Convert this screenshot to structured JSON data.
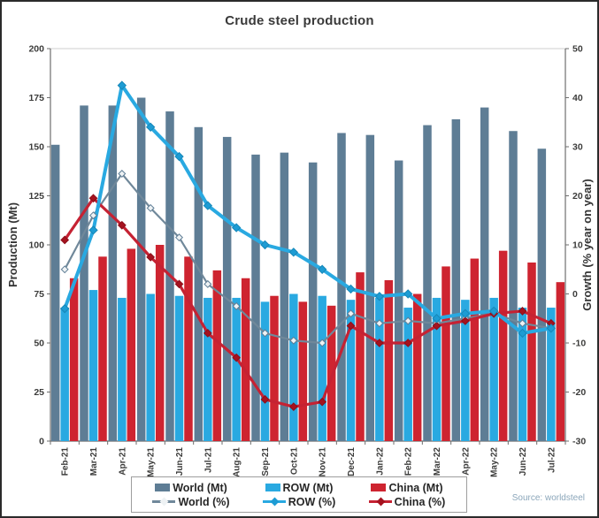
{
  "source_note": "Source: worldsteel",
  "chart_data": {
    "type": "bar+line",
    "title": "Crude steel production",
    "legend_position": "bottom",
    "grid": false,
    "categories": [
      "Feb-21",
      "Mar-21",
      "Apr-21",
      "May-21",
      "Jun-21",
      "Jul-21",
      "Aug-21",
      "Sep-21",
      "Oct-21",
      "Nov-21",
      "Dec-21",
      "Jan-22",
      "Feb-22",
      "Mar-22",
      "Apr-22",
      "May-22",
      "Jun-22",
      "Jul-22"
    ],
    "left_axis": {
      "label": "Production (Mt)",
      "min": 0,
      "max": 200,
      "ticks": [
        0,
        25,
        50,
        75,
        100,
        125,
        150,
        175,
        200
      ]
    },
    "right_axis": {
      "label": "Growth (% year on year)",
      "min": -30,
      "max": 50,
      "ticks": [
        -30,
        -20,
        -10,
        0,
        10,
        20,
        30,
        40,
        50
      ]
    },
    "bar_series": [
      {
        "key": "world-mt",
        "name": "World (Mt)",
        "axis": "left",
        "color": "#5e7d95",
        "values": [
          151,
          171,
          171,
          175,
          168,
          160,
          155,
          146,
          147,
          142,
          157,
          156,
          143,
          161,
          164,
          170,
          158,
          149
        ]
      },
      {
        "key": "row-mt",
        "name": "ROW (Mt)",
        "axis": "left",
        "color": "#29a9e1",
        "values": [
          68,
          77,
          73,
          75,
          74,
          73,
          73,
          71,
          75,
          74,
          72,
          73,
          68,
          73,
          72,
          73,
          68,
          68
        ]
      },
      {
        "key": "china-mt",
        "name": "China (Mt)",
        "axis": "left",
        "color": "#ce2430",
        "values": [
          83,
          94,
          98,
          100,
          94,
          87,
          83,
          74,
          71,
          69,
          86,
          82,
          75,
          89,
          93,
          97,
          91,
          81
        ]
      }
    ],
    "line_series": [
      {
        "key": "world-pct",
        "name": "World (%)",
        "axis": "right",
        "color": "#70889a",
        "marker_fill": "#eef2f4",
        "marker_stroke": "#5e7d95",
        "width": 2.2,
        "marker_size": 3.8,
        "values": [
          5,
          16,
          24.5,
          17.5,
          11.5,
          2,
          -2.5,
          -8,
          -9.5,
          -10,
          -4,
          -6,
          -5.5,
          -6,
          -5,
          -4,
          -6,
          -7
        ]
      },
      {
        "key": "row-pct",
        "name": "ROW (%)",
        "axis": "right",
        "color": "#29a9e1",
        "marker_fill": "#1d9cd4",
        "marker_stroke": "#1787b8",
        "width": 4,
        "marker_size": 4.5,
        "values": [
          -3,
          13,
          42.5,
          34,
          28,
          18,
          13.5,
          10,
          8.5,
          5,
          1,
          -0.5,
          0,
          -5,
          -4,
          -3.5,
          -8,
          -7
        ]
      },
      {
        "key": "china-pct",
        "name": "China (%)",
        "axis": "right",
        "color": "#c52233",
        "marker_fill": "#a5121f",
        "marker_stroke": "#8c0f1a",
        "width": 3.2,
        "marker_size": 4.2,
        "values": [
          11,
          19.5,
          14,
          7.5,
          2,
          -8,
          -13,
          -21.5,
          -23,
          -22,
          -6.5,
          -10,
          -10,
          -6.5,
          -5.5,
          -4,
          -3.5,
          -6
        ]
      }
    ]
  }
}
